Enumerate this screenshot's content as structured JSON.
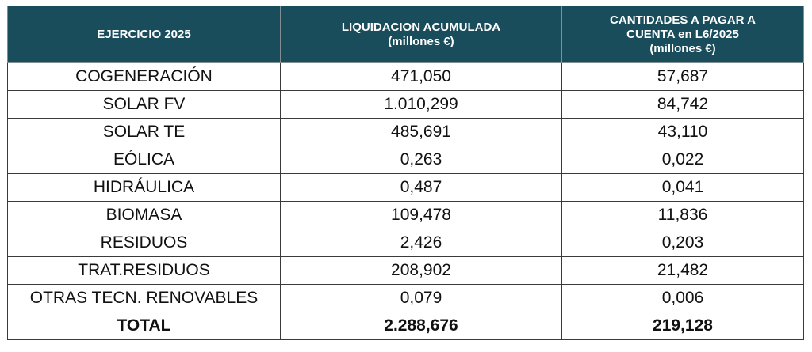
{
  "table": {
    "header": {
      "col1": [
        "EJERCICIO 2025"
      ],
      "col2": [
        "LIQUIDACION ACUMULADA",
        "(millones €)"
      ],
      "col3": [
        "CANTIDADES A PAGAR A",
        "CUENTA en L6/2025",
        "(millones €)"
      ]
    },
    "rows": [
      {
        "label": "COGENERACIÓN",
        "liquidacion": "471,050",
        "cantidades": "57,687"
      },
      {
        "label": "SOLAR FV",
        "liquidacion": "1.010,299",
        "cantidades": "84,742"
      },
      {
        "label": "SOLAR TE",
        "liquidacion": "485,691",
        "cantidades": "43,110"
      },
      {
        "label": "EÓLICA",
        "liquidacion": "0,263",
        "cantidades": "0,022"
      },
      {
        "label": "HIDRÁULICA",
        "liquidacion": "0,487",
        "cantidades": "0,041"
      },
      {
        "label": "BIOMASA",
        "liquidacion": "109,478",
        "cantidades": "11,836"
      },
      {
        "label": "RESIDUOS",
        "liquidacion": "2,426",
        "cantidades": "0,203"
      },
      {
        "label": "TRAT.RESIDUOS",
        "liquidacion": "208,902",
        "cantidades": "21,482"
      },
      {
        "label": "OTRAS TECN. RENOVABLES",
        "liquidacion": "0,079",
        "cantidades": "0,006"
      }
    ],
    "total": {
      "label": "TOTAL",
      "liquidacion": "2.288,676",
      "cantidades": "219,128"
    },
    "colors": {
      "header_bg": "#1a4d5c",
      "header_text": "#ffffff"
    }
  }
}
